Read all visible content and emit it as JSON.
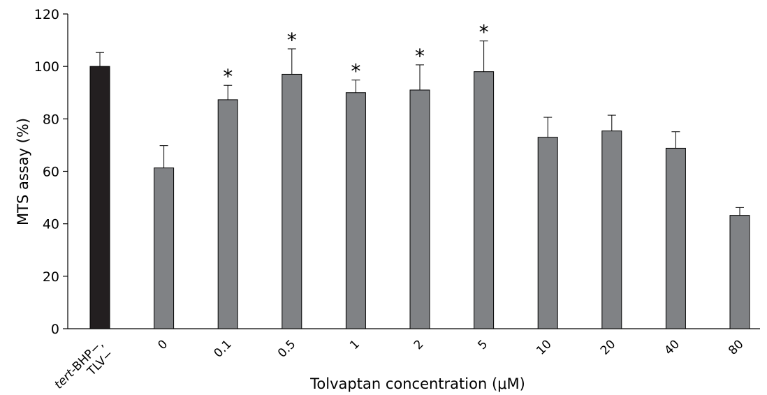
{
  "chart_data": {
    "type": "bar",
    "categories": [
      {
        "parts": [
          {
            "text": "tert",
            "italic": true
          },
          {
            "text": "-BHP−,",
            "italic": false
          }
        ],
        "line2": "TLV−"
      },
      {
        "parts": [
          {
            "text": "0",
            "italic": false
          }
        ]
      },
      {
        "parts": [
          {
            "text": "0.1",
            "italic": false
          }
        ]
      },
      {
        "parts": [
          {
            "text": "0.5",
            "italic": false
          }
        ]
      },
      {
        "parts": [
          {
            "text": "1",
            "italic": false
          }
        ]
      },
      {
        "parts": [
          {
            "text": "2",
            "italic": false
          }
        ]
      },
      {
        "parts": [
          {
            "text": "5",
            "italic": false
          }
        ]
      },
      {
        "parts": [
          {
            "text": "10",
            "italic": false
          }
        ]
      },
      {
        "parts": [
          {
            "text": "20",
            "italic": false
          }
        ]
      },
      {
        "parts": [
          {
            "text": "40",
            "italic": false
          }
        ]
      },
      {
        "parts": [
          {
            "text": "80",
            "italic": false
          }
        ]
      }
    ],
    "values": [
      100,
      61.3,
      87.3,
      97,
      90,
      91,
      98,
      73,
      75.4,
      68.8,
      43.2
    ],
    "errors": [
      5.3,
      8.5,
      5.5,
      9.7,
      4.8,
      9.6,
      11.7,
      7.6,
      6,
      6.3,
      3
    ],
    "significant": [
      false,
      false,
      true,
      true,
      true,
      true,
      true,
      false,
      false,
      false,
      false
    ],
    "significance_marker": "*",
    "bar_colors": [
      "#231f20",
      "#808285",
      "#808285",
      "#808285",
      "#808285",
      "#808285",
      "#808285",
      "#808285",
      "#808285",
      "#808285",
      "#808285"
    ],
    "xlabel": "Tolvaptan concentration (μM)",
    "ylabel": "MTS assay (%)",
    "ylim": [
      0,
      120
    ],
    "yticks": [
      0,
      20,
      40,
      60,
      80,
      100,
      120
    ],
    "grid": false
  }
}
